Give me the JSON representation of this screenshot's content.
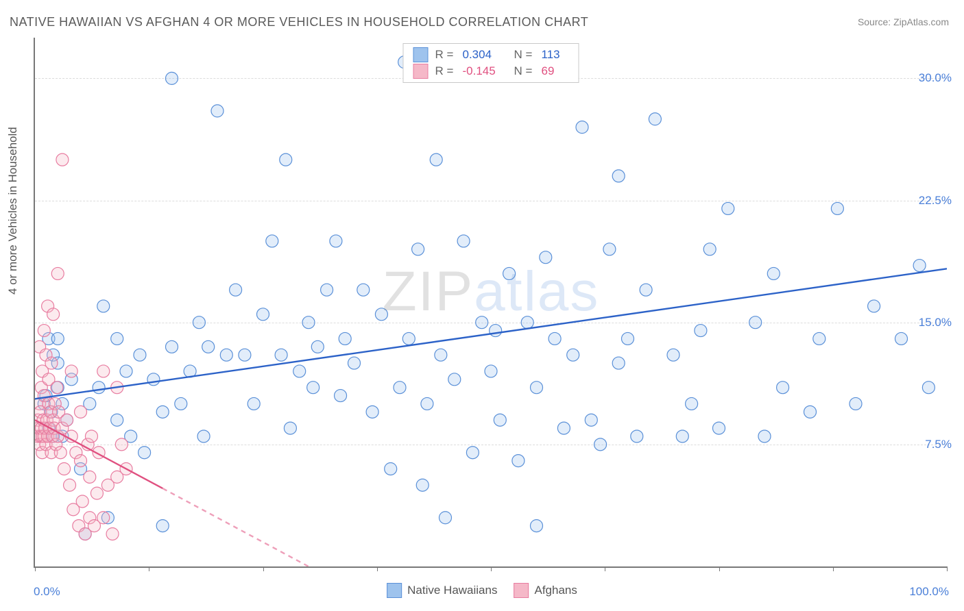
{
  "title": "NATIVE HAWAIIAN VS AFGHAN 4 OR MORE VEHICLES IN HOUSEHOLD CORRELATION CHART",
  "source_label": "Source: ZipAtlas.com",
  "ylabel": "4 or more Vehicles in Household",
  "watermark": {
    "part1": "ZIP",
    "part2": "atlas"
  },
  "chart": {
    "type": "scatter",
    "background_color": "#ffffff",
    "grid_color": "#dcdcdc",
    "axis_color": "#777777",
    "xlim": [
      0,
      100
    ],
    "ylim": [
      0,
      32.5
    ],
    "xtick_labels": {
      "left": "0.0%",
      "right": "100.0%"
    },
    "xtick_marks": [
      0,
      12.5,
      25,
      37.5,
      50,
      62.5,
      75,
      87.5,
      100
    ],
    "yticks": [
      {
        "value": 7.5,
        "label": "7.5%"
      },
      {
        "value": 15.0,
        "label": "15.0%"
      },
      {
        "value": 22.5,
        "label": "22.5%"
      },
      {
        "value": 30.0,
        "label": "30.0%"
      }
    ],
    "marker_radius": 9,
    "marker_stroke_width": 1.2,
    "marker_fill_opacity": 0.3,
    "trend_line_width": 2.4,
    "series": [
      {
        "name": "Native Hawaiians",
        "color_fill": "#9ec3ed",
        "color_stroke": "#5a90d8",
        "trend_color": "#2c62c8",
        "R": "0.304",
        "N": "113",
        "trend": {
          "x1": 0,
          "y1": 10.3,
          "x2": 100,
          "y2": 18.3
        },
        "trend_dash_after_x": null,
        "points": [
          [
            1.0,
            10.0
          ],
          [
            1.2,
            10.5
          ],
          [
            1.5,
            8.5
          ],
          [
            1.5,
            14.0
          ],
          [
            1.8,
            9.5
          ],
          [
            2.0,
            8.0
          ],
          [
            2.0,
            13.0
          ],
          [
            2.5,
            11.0
          ],
          [
            2.5,
            12.5
          ],
          [
            2.5,
            14.0
          ],
          [
            3.0,
            8.0
          ],
          [
            3.0,
            10.0
          ],
          [
            3.5,
            9.0
          ],
          [
            4.0,
            11.5
          ],
          [
            5.0,
            6.0
          ],
          [
            5.5,
            2.0
          ],
          [
            6.0,
            10.0
          ],
          [
            7.0,
            11.0
          ],
          [
            7.5,
            16.0
          ],
          [
            8.0,
            3.0
          ],
          [
            9.0,
            9.0
          ],
          [
            9.0,
            14.0
          ],
          [
            10.0,
            12.0
          ],
          [
            10.5,
            8.0
          ],
          [
            11.5,
            13.0
          ],
          [
            12.0,
            7.0
          ],
          [
            13.0,
            11.5
          ],
          [
            14.0,
            2.5
          ],
          [
            14.0,
            9.5
          ],
          [
            15.0,
            30.0
          ],
          [
            15.0,
            13.5
          ],
          [
            16.0,
            10.0
          ],
          [
            17.0,
            12.0
          ],
          [
            18.0,
            15.0
          ],
          [
            18.5,
            8.0
          ],
          [
            19.0,
            13.5
          ],
          [
            20.0,
            28.0
          ],
          [
            21.0,
            13.0
          ],
          [
            22.0,
            17.0
          ],
          [
            23.0,
            13.0
          ],
          [
            24.0,
            10.0
          ],
          [
            25.0,
            15.5
          ],
          [
            26.0,
            20.0
          ],
          [
            27.0,
            13.0
          ],
          [
            27.5,
            25.0
          ],
          [
            28.0,
            8.5
          ],
          [
            29.0,
            12.0
          ],
          [
            30.0,
            15.0
          ],
          [
            30.5,
            11.0
          ],
          [
            31.0,
            13.5
          ],
          [
            32.0,
            17.0
          ],
          [
            33.0,
            20.0
          ],
          [
            33.5,
            10.5
          ],
          [
            34.0,
            14.0
          ],
          [
            35.0,
            12.5
          ],
          [
            36.0,
            17.0
          ],
          [
            37.0,
            9.5
          ],
          [
            38.0,
            15.5
          ],
          [
            39.0,
            6.0
          ],
          [
            40.0,
            11.0
          ],
          [
            40.5,
            31.0
          ],
          [
            41.0,
            14.0
          ],
          [
            42.0,
            19.5
          ],
          [
            42.5,
            5.0
          ],
          [
            43.0,
            10.0
          ],
          [
            44.0,
            25.0
          ],
          [
            44.5,
            13.0
          ],
          [
            45.0,
            3.0
          ],
          [
            46.0,
            11.5
          ],
          [
            47.0,
            20.0
          ],
          [
            48.0,
            7.0
          ],
          [
            49.0,
            15.0
          ],
          [
            50.0,
            12.0
          ],
          [
            50.5,
            14.5
          ],
          [
            51.0,
            9.0
          ],
          [
            52.0,
            18.0
          ],
          [
            53.0,
            6.5
          ],
          [
            54.0,
            15.0
          ],
          [
            55.0,
            11.0
          ],
          [
            55.0,
            2.5
          ],
          [
            56.0,
            19.0
          ],
          [
            57.0,
            14.0
          ],
          [
            58.0,
            8.5
          ],
          [
            59.0,
            13.0
          ],
          [
            60.0,
            27.0
          ],
          [
            61.0,
            9.0
          ],
          [
            62.0,
            7.5
          ],
          [
            63.0,
            19.5
          ],
          [
            64.0,
            12.5
          ],
          [
            64.0,
            24.0
          ],
          [
            65.0,
            14.0
          ],
          [
            66.0,
            8.0
          ],
          [
            67.0,
            17.0
          ],
          [
            68.0,
            27.5
          ],
          [
            70.0,
            13.0
          ],
          [
            71.0,
            8.0
          ],
          [
            72.0,
            10.0
          ],
          [
            73.0,
            14.5
          ],
          [
            74.0,
            19.5
          ],
          [
            75.0,
            8.5
          ],
          [
            76.0,
            22.0
          ],
          [
            79.0,
            15.0
          ],
          [
            80.0,
            8.0
          ],
          [
            81.0,
            18.0
          ],
          [
            82.0,
            11.0
          ],
          [
            85.0,
            9.5
          ],
          [
            86.0,
            14.0
          ],
          [
            88.0,
            22.0
          ],
          [
            90.0,
            10.0
          ],
          [
            92.0,
            16.0
          ],
          [
            95.0,
            14.0
          ],
          [
            97.0,
            18.5
          ],
          [
            98.0,
            11.0
          ]
        ]
      },
      {
        "name": "Afghans",
        "color_fill": "#f5b8c8",
        "color_stroke": "#e87ca0",
        "trend_color": "#e05080",
        "R": "-0.145",
        "N": "69",
        "trend": {
          "x1": 0,
          "y1": 9.0,
          "x2": 30,
          "y2": 0.0
        },
        "trend_dash_after_x": 14,
        "points": [
          [
            0.3,
            8.0
          ],
          [
            0.3,
            9.0
          ],
          [
            0.4,
            8.5
          ],
          [
            0.5,
            7.5
          ],
          [
            0.5,
            10.0
          ],
          [
            0.5,
            13.5
          ],
          [
            0.6,
            8.0
          ],
          [
            0.6,
            9.5
          ],
          [
            0.7,
            8.5
          ],
          [
            0.7,
            11.0
          ],
          [
            0.8,
            7.0
          ],
          [
            0.8,
            8.0
          ],
          [
            0.8,
            12.0
          ],
          [
            0.9,
            9.0
          ],
          [
            1.0,
            8.0
          ],
          [
            1.0,
            10.5
          ],
          [
            1.0,
            14.5
          ],
          [
            1.1,
            8.5
          ],
          [
            1.2,
            7.5
          ],
          [
            1.2,
            13.0
          ],
          [
            1.3,
            9.0
          ],
          [
            1.4,
            8.0
          ],
          [
            1.4,
            16.0
          ],
          [
            1.5,
            10.0
          ],
          [
            1.5,
            11.5
          ],
          [
            1.6,
            8.5
          ],
          [
            1.7,
            9.5
          ],
          [
            1.8,
            7.0
          ],
          [
            1.8,
            12.5
          ],
          [
            1.9,
            8.0
          ],
          [
            2.0,
            9.0
          ],
          [
            2.0,
            15.5
          ],
          [
            2.1,
            8.5
          ],
          [
            2.2,
            10.0
          ],
          [
            2.3,
            7.5
          ],
          [
            2.4,
            11.0
          ],
          [
            2.5,
            8.0
          ],
          [
            2.5,
            18.0
          ],
          [
            2.6,
            9.5
          ],
          [
            2.8,
            7.0
          ],
          [
            3.0,
            8.5
          ],
          [
            3.0,
            25.0
          ],
          [
            3.2,
            6.0
          ],
          [
            3.5,
            9.0
          ],
          [
            3.8,
            5.0
          ],
          [
            4.0,
            8.0
          ],
          [
            4.0,
            12.0
          ],
          [
            4.2,
            3.5
          ],
          [
            4.5,
            7.0
          ],
          [
            4.8,
            2.5
          ],
          [
            5.0,
            6.5
          ],
          [
            5.0,
            9.5
          ],
          [
            5.2,
            4.0
          ],
          [
            5.5,
            2.0
          ],
          [
            5.8,
            7.5
          ],
          [
            6.0,
            3.0
          ],
          [
            6.0,
            5.5
          ],
          [
            6.2,
            8.0
          ],
          [
            6.5,
            2.5
          ],
          [
            6.8,
            4.5
          ],
          [
            7.0,
            7.0
          ],
          [
            7.5,
            3.0
          ],
          [
            7.5,
            12.0
          ],
          [
            8.0,
            5.0
          ],
          [
            8.5,
            2.0
          ],
          [
            9.0,
            11.0
          ],
          [
            9.0,
            5.5
          ],
          [
            9.5,
            7.5
          ],
          [
            10.0,
            6.0
          ]
        ]
      }
    ]
  },
  "legend_bottom": [
    {
      "swatch_fill": "#9ec3ed",
      "swatch_stroke": "#5a90d8",
      "label": "Native Hawaiians"
    },
    {
      "swatch_fill": "#f5b8c8",
      "swatch_stroke": "#e87ca0",
      "label": "Afghans"
    }
  ]
}
